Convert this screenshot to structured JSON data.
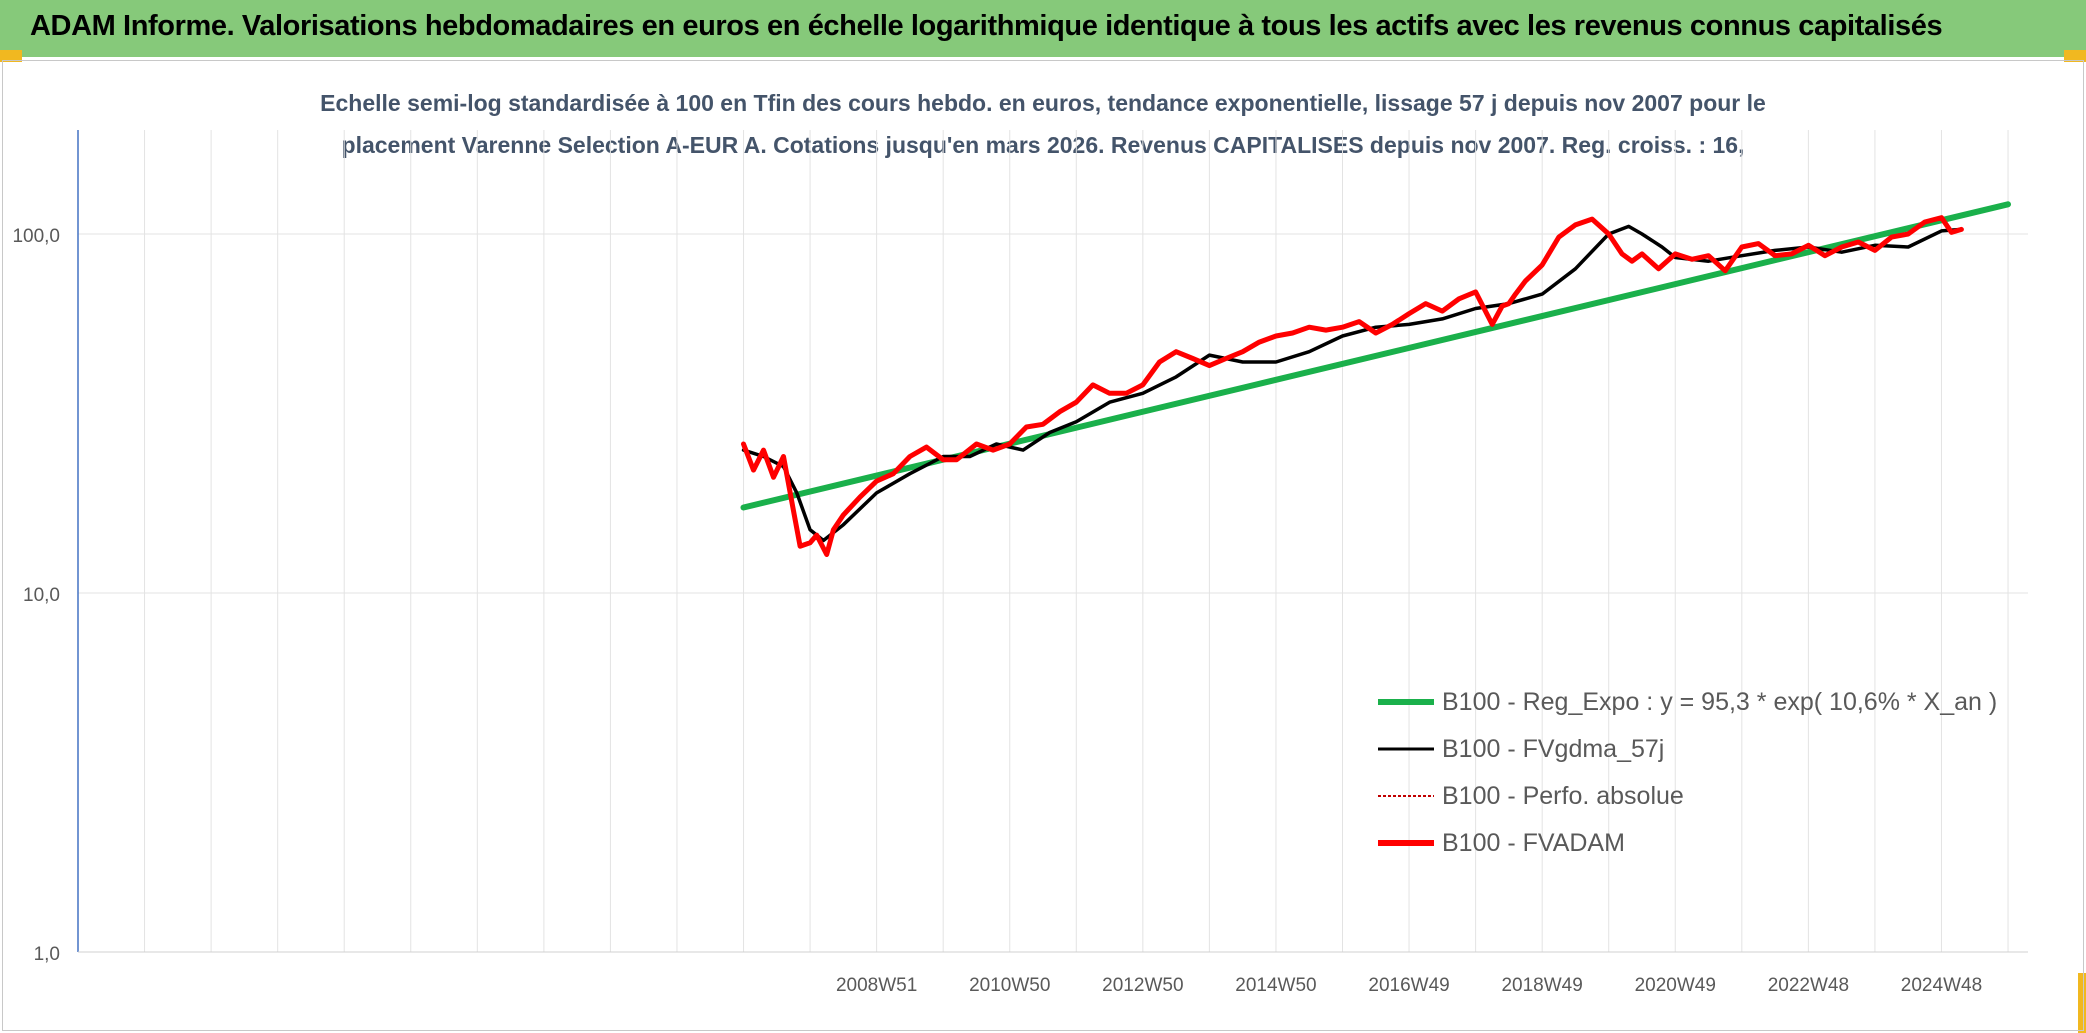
{
  "header": {
    "title": "ADAM Informe. Valorisations hebdomadaires en euros en échelle logarithmique identique à tous les actifs avec les revenus connus capitalisés",
    "background_color": "#86c97a"
  },
  "chart_data": {
    "type": "line",
    "title_line1": "Echelle semi-log standardisée à 100 en Tfin des cours hebdo. en euros, tendance exponentielle, lissage 57 j depuis nov 2007 pour le",
    "title_line2": "placement Varenne Selection A-EUR A. Cotations jusqu'en mars 2026. Revenus CAPITALISES depuis nov 2007. Reg. croiss. : 16,",
    "y_scale": "log",
    "ylim": [
      1,
      200
    ],
    "y_ticks": [
      {
        "value": 1,
        "label": "1,0"
      },
      {
        "value": 10,
        "label": "10,0"
      },
      {
        "value": 100,
        "label": "100,0"
      }
    ],
    "x_ticks": [
      "2008W51",
      "2010W50",
      "2012W50",
      "2014W50",
      "2016W49",
      "2018W49",
      "2020W49",
      "2022W48",
      "2024W48"
    ],
    "x_range": [
      1998,
      2027.3
    ],
    "grid": true,
    "legend_position": "bottom-right",
    "legend": [
      {
        "label": "B100 - Reg_Expo : y = 95,3 * exp( 10,6% *  X_an )",
        "color": "#1ab04b",
        "style": "thick"
      },
      {
        "label": "B100 - FVgdma_57j",
        "color": "#000000",
        "style": "solid"
      },
      {
        "label": "B100 - Perfo. absolue",
        "color": "#c00000",
        "style": "dotted"
      },
      {
        "label": "B100 - FVADAM",
        "color": "#ff0000",
        "style": "thick"
      }
    ],
    "series": [
      {
        "name": "B100 - Reg_Expo : y = 95,3 * exp( 10,6% *  X_an )",
        "color": "#1ab04b",
        "x": [
          2008.0,
          2027.0
        ],
        "y": [
          17.3,
          121.0
        ]
      },
      {
        "name": "B100 - FVgdma_57j",
        "color": "#000000",
        "x": [
          2008.0,
          2008.3,
          2008.6,
          2008.8,
          2009.0,
          2009.2,
          2009.5,
          2010.0,
          2010.5,
          2011.0,
          2011.4,
          2011.8,
          2012.2,
          2012.6,
          2013.0,
          2013.5,
          2014.0,
          2014.5,
          2015.0,
          2015.5,
          2016.0,
          2016.5,
          2017.0,
          2017.5,
          2018.0,
          2018.5,
          2019.0,
          2019.5,
          2020.0,
          2020.5,
          2021.0,
          2021.3,
          2021.5,
          2021.8,
          2022.0,
          2022.5,
          2023.0,
          2023.5,
          2024.0,
          2024.5,
          2025.0,
          2025.5,
          2026.0,
          2026.3
        ],
        "y": [
          25,
          24,
          22.5,
          19,
          15,
          14,
          15.5,
          19,
          21.5,
          24,
          24,
          26,
          25,
          28,
          30,
          34,
          36,
          40,
          46,
          44,
          44,
          47,
          52,
          55,
          56,
          58,
          62,
          64,
          68,
          80,
          100,
          105,
          100,
          92,
          86,
          84,
          87,
          90,
          92,
          89,
          93,
          92,
          102,
          103
        ]
      },
      {
        "name": "B100 - FVADAM",
        "color": "#ff0000",
        "x": [
          2008.0,
          2008.15,
          2008.3,
          2008.45,
          2008.6,
          2008.75,
          2008.85,
          2009.0,
          2009.1,
          2009.25,
          2009.35,
          2009.5,
          2009.75,
          2010.0,
          2010.25,
          2010.5,
          2010.75,
          2011.0,
          2011.2,
          2011.5,
          2011.75,
          2012.0,
          2012.25,
          2012.5,
          2012.75,
          2013.0,
          2013.25,
          2013.5,
          2013.75,
          2014.0,
          2014.25,
          2014.5,
          2014.75,
          2015.0,
          2015.25,
          2015.5,
          2015.75,
          2016.0,
          2016.25,
          2016.5,
          2016.75,
          2017.0,
          2017.25,
          2017.5,
          2017.75,
          2018.0,
          2018.25,
          2018.5,
          2018.75,
          2019.0,
          2019.25,
          2019.4,
          2019.5,
          2019.6,
          2019.75,
          2020.0,
          2020.25,
          2020.5,
          2020.75,
          2021.0,
          2021.2,
          2021.35,
          2021.5,
          2021.75,
          2022.0,
          2022.25,
          2022.5,
          2022.75,
          2023.0,
          2023.25,
          2023.5,
          2023.75,
          2024.0,
          2024.25,
          2024.5,
          2024.75,
          2025.0,
          2025.25,
          2025.5,
          2025.75,
          2026.0,
          2026.15,
          2026.3
        ],
        "y": [
          26,
          22,
          25,
          21,
          24,
          17,
          13.5,
          13.8,
          14.5,
          12.8,
          15,
          16.5,
          18.5,
          20.5,
          21.5,
          24,
          25.5,
          23.5,
          23.5,
          26,
          25,
          26,
          29,
          29.5,
          32,
          34,
          38,
          36,
          36,
          38,
          44,
          47,
          45,
          43,
          45,
          47,
          50,
          52,
          53,
          55,
          54,
          55,
          57,
          53,
          56,
          60,
          64,
          61,
          66,
          69,
          56,
          63,
          64,
          68,
          74,
          82,
          98,
          106,
          110,
          100,
          88,
          84,
          88,
          80,
          88,
          85,
          87,
          79,
          92,
          94,
          87,
          88,
          93,
          87,
          92,
          95,
          90,
          98,
          100,
          108,
          111,
          101,
          103
        ]
      }
    ]
  }
}
